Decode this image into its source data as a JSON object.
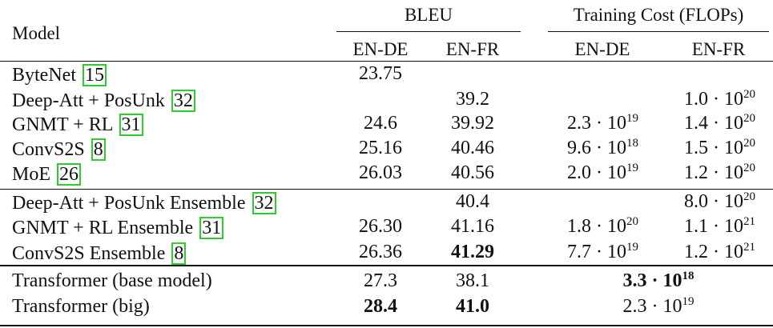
{
  "headers": {
    "model": "Model",
    "bleu": "BLEU",
    "training_cost": "Training Cost (FLOPs)",
    "en_de": "EN-DE",
    "en_fr": "EN-FR"
  },
  "rows": [
    {
      "model": "ByteNet",
      "ref": "15",
      "bleu_de": "23.75",
      "bleu_fr": "",
      "cost_de": "",
      "cost_fr": ""
    },
    {
      "model": "Deep-Att + PosUnk",
      "ref": "32",
      "bleu_de": "",
      "bleu_fr": "39.2",
      "cost_de": "",
      "cost_fr": "1.0 · 10^20"
    },
    {
      "model": "GNMT + RL",
      "ref": "31",
      "bleu_de": "24.6",
      "bleu_fr": "39.92",
      "cost_de": "2.3 · 10^19",
      "cost_fr": "1.4 · 10^20"
    },
    {
      "model": "ConvS2S",
      "ref": "8",
      "bleu_de": "25.16",
      "bleu_fr": "40.46",
      "cost_de": "9.6 · 10^18",
      "cost_fr": "1.5 · 10^20"
    },
    {
      "model": "MoE",
      "ref": "26",
      "bleu_de": "26.03",
      "bleu_fr": "40.56",
      "cost_de": "2.0 · 10^19",
      "cost_fr": "1.2 · 10^20"
    },
    {
      "model": "Deep-Att + PosUnk Ensemble",
      "ref": "32",
      "bleu_de": "",
      "bleu_fr": "40.4",
      "cost_de": "",
      "cost_fr": "8.0 · 10^20"
    },
    {
      "model": "GNMT + RL Ensemble",
      "ref": "31",
      "bleu_de": "26.30",
      "bleu_fr": "41.16",
      "cost_de": "1.8 · 10^20",
      "cost_fr": "1.1 · 10^21"
    },
    {
      "model": "ConvS2S Ensemble",
      "ref": "8",
      "bleu_de": "26.36",
      "bleu_fr": "41.29",
      "cost_de": "7.7 · 10^19",
      "cost_fr": "1.2 · 10^21"
    },
    {
      "model": "Transformer (base model)",
      "ref": "",
      "bleu_de": "27.3",
      "bleu_fr": "38.1",
      "cost_merged": "3.3 · 10^18"
    },
    {
      "model": "Transformer (big)",
      "ref": "",
      "bleu_de": "28.4",
      "bleu_fr": "41.0",
      "cost_merged": "2.3 · 10^19"
    }
  ],
  "bold_cells": [
    "7.bleu_fr",
    "8.cost_merged",
    "9.bleu_de",
    "9.bleu_fr"
  ]
}
